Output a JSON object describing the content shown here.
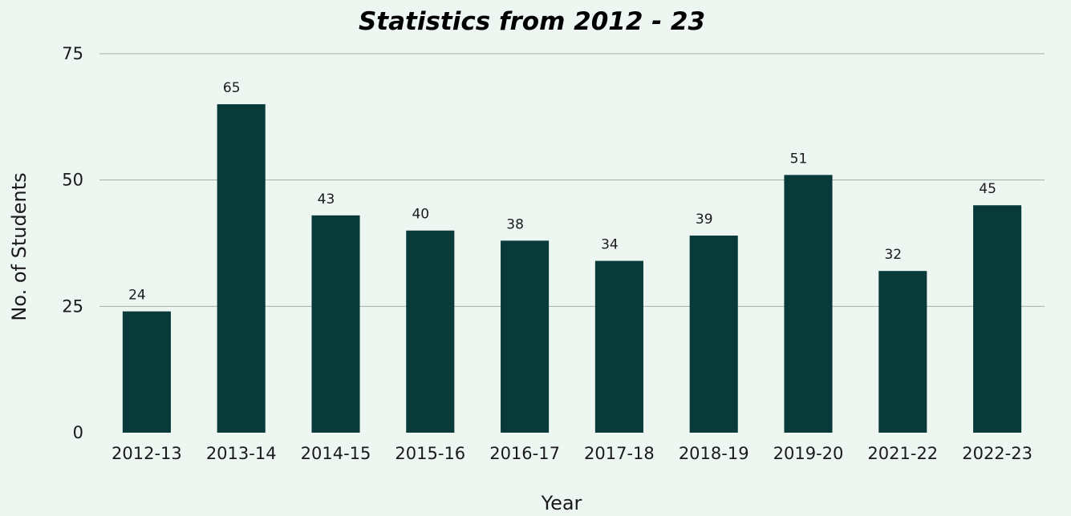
{
  "chart_data": {
    "type": "bar",
    "title": "Statistics from 2012 - 23",
    "xlabel": "Year",
    "ylabel": "No. of Students",
    "categories": [
      "2012-13",
      "2013-14",
      "2014-15",
      "2015-16",
      "2016-17",
      "2017-18",
      "2018-19",
      "2019-20",
      "2021-22",
      "2022-23"
    ],
    "values": [
      24,
      65,
      43,
      40,
      38,
      34,
      39,
      51,
      32,
      45
    ],
    "ylim": [
      0,
      75
    ],
    "yticks": [
      0,
      25,
      50,
      75
    ],
    "grid": true,
    "legend": "none",
    "colors": {
      "bar": "#073a39",
      "background": "#edf6f1",
      "grid": "#9fb0a8"
    }
  }
}
